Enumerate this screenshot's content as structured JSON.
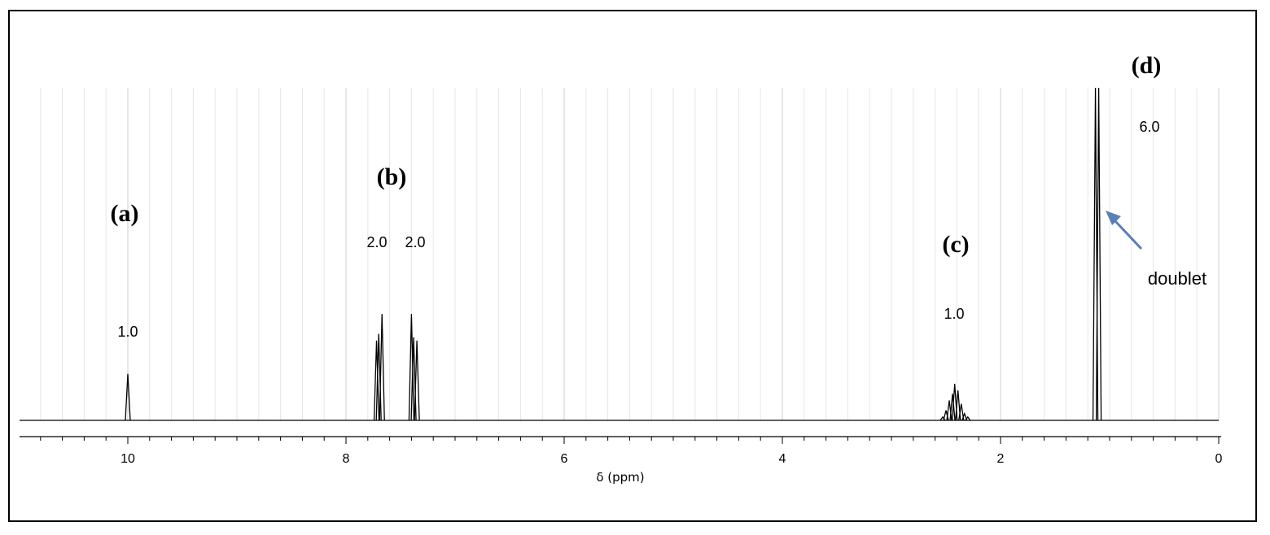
{
  "chart_data": {
    "type": "line",
    "title": "",
    "xlabel": "δ (ppm)",
    "ylabel": "",
    "xlim": [
      11,
      0
    ],
    "x_reversed": true,
    "grid": "vertical",
    "x_ticks": [
      {
        "value": 10,
        "label": "10"
      },
      {
        "value": 8,
        "label": "8"
      },
      {
        "value": 6,
        "label": "6"
      },
      {
        "value": 4,
        "label": "4"
      },
      {
        "value": 2,
        "label": "2"
      },
      {
        "value": 0,
        "label": "0"
      }
    ],
    "peaks": [
      {
        "id": "a",
        "label": "(a)",
        "integration": "1.0",
        "lines": [
          {
            "ppm": 10.0,
            "height": 0.14
          }
        ]
      },
      {
        "id": "b1",
        "label": "(b)",
        "integration": "2.0",
        "lines": [
          {
            "ppm": 7.72,
            "height": 0.24
          },
          {
            "ppm": 7.7,
            "height": 0.26
          },
          {
            "ppm": 7.67,
            "height": 0.32
          }
        ]
      },
      {
        "id": "b2",
        "label": "",
        "integration": "2.0",
        "lines": [
          {
            "ppm": 7.4,
            "height": 0.32
          },
          {
            "ppm": 7.38,
            "height": 0.25
          },
          {
            "ppm": 7.35,
            "height": 0.24
          }
        ]
      },
      {
        "id": "c",
        "label": "(c)",
        "integration": "1.0",
        "lines": [
          {
            "ppm": 2.53,
            "height": 0.01
          },
          {
            "ppm": 2.5,
            "height": 0.03
          },
          {
            "ppm": 2.47,
            "height": 0.06
          },
          {
            "ppm": 2.44,
            "height": 0.08
          },
          {
            "ppm": 2.42,
            "height": 0.11
          },
          {
            "ppm": 2.39,
            "height": 0.09
          },
          {
            "ppm": 2.36,
            "height": 0.05
          },
          {
            "ppm": 2.33,
            "height": 0.02
          },
          {
            "ppm": 2.3,
            "height": 0.01
          }
        ]
      },
      {
        "id": "d",
        "label": "(d)",
        "integration": "6.0",
        "lines": [
          {
            "ppm": 1.13,
            "height": 1.0
          },
          {
            "ppm": 1.1,
            "height": 1.0
          }
        ]
      }
    ],
    "annotations": [
      {
        "text": "doublet",
        "target_peak": "d"
      }
    ]
  }
}
